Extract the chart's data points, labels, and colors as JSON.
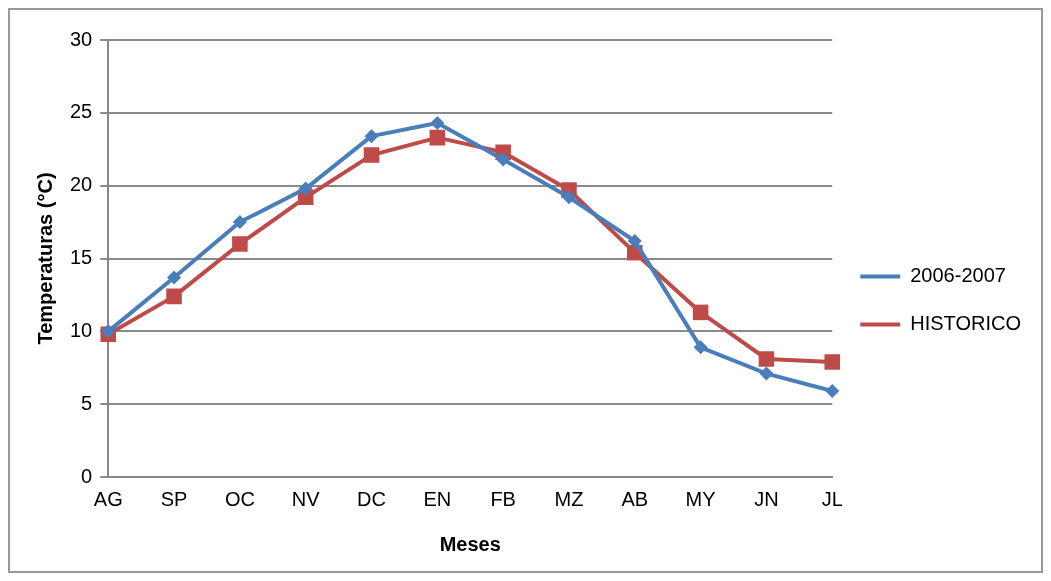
{
  "chart_data": {
    "type": "line",
    "xlabel": "Meses",
    "ylabel": "Temperaturas (°C)",
    "categories": [
      "AG",
      "SP",
      "OC",
      "NV",
      "DC",
      "EN",
      "FB",
      "MZ",
      "AB",
      "MY",
      "JN",
      "JL"
    ],
    "series": [
      {
        "name": "2006-2007",
        "color": "#4a7ebb",
        "marker": "diamond",
        "values": [
          10.0,
          13.7,
          17.5,
          19.8,
          23.4,
          24.3,
          21.8,
          19.2,
          16.2,
          8.9,
          7.1,
          5.9
        ]
      },
      {
        "name": "HISTORICO",
        "color": "#be4b48",
        "marker": "square",
        "values": [
          9.8,
          12.4,
          16.0,
          19.2,
          22.1,
          23.3,
          22.3,
          19.7,
          15.4,
          11.3,
          8.1,
          7.9
        ]
      }
    ],
    "ylim": [
      0,
      30
    ],
    "yticks": [
      0,
      5,
      10,
      15,
      20,
      25,
      30
    ],
    "grid": "y",
    "legend": "right",
    "line_style": "solid"
  }
}
